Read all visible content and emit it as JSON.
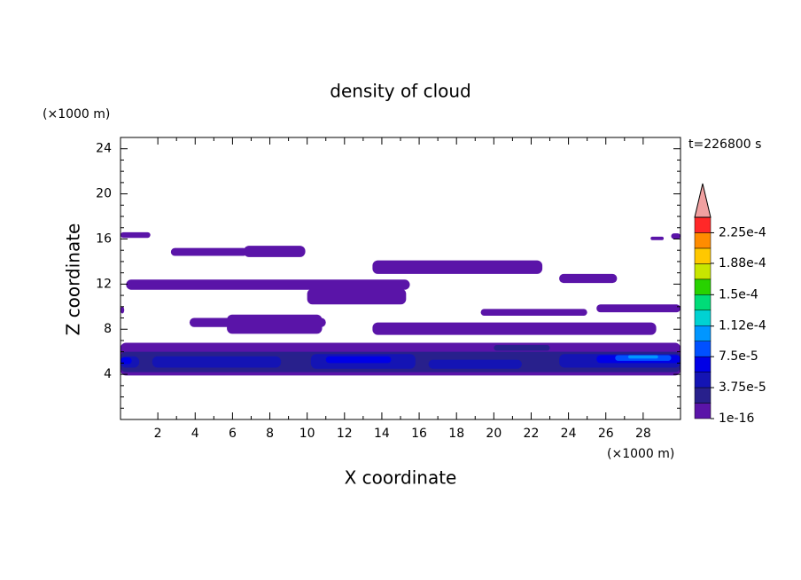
{
  "chart_data": {
    "type": "contour",
    "title": "density of cloud",
    "x_label": "X coordinate",
    "y_label": "Z coordinate",
    "x_unit": "(×1000 m)",
    "y_unit": "(×1000 m)",
    "time_label": "t=226800 s",
    "xlim": [
      0,
      30
    ],
    "xticks": [
      2,
      4,
      6,
      8,
      10,
      12,
      14,
      16,
      18,
      20,
      22,
      24,
      26,
      28
    ],
    "ylim": [
      0,
      25
    ],
    "yticks": [
      4,
      8,
      12,
      16,
      20,
      24
    ],
    "clim": [
      1e-16,
      0.00024375
    ],
    "colors": [
      "#5a14a8",
      "#28208c",
      "#1414b4",
      "#0000e6",
      "#0050ff",
      "#0096ff",
      "#00d2d2",
      "#00dc78",
      "#28d200",
      "#c8e600",
      "#ffc800",
      "#ff8c00",
      "#ff2828"
    ],
    "over_color": "#f0a0a0",
    "cticks": [
      1e-16,
      {
        "value": 3.75e-05,
        "label": "3.75e-5"
      },
      {
        "value": 7.5e-05,
        "label": "7.5e-5"
      },
      {
        "value": 0.000112,
        "label": "1.12e-4"
      },
      {
        "value": 0.00015,
        "label": "1.5e-4"
      },
      {
        "value": 0.000188,
        "label": "1.88e-4"
      },
      {
        "value": 0.000225,
        "label": "2.25e-4"
      }
    ],
    "regions": [
      {
        "x": [
          0,
          1.6
        ],
        "z": [
          16.1,
          16.6
        ],
        "value": 1e-16
      },
      {
        "x": [
          28.4,
          29.1
        ],
        "z": [
          15.9,
          16.2
        ],
        "value": 1e-16
      },
      {
        "x": [
          29.5,
          30
        ],
        "z": [
          16.0,
          16.5
        ],
        "value": 1e-16
      },
      {
        "x": [
          2.7,
          6.8
        ],
        "z": [
          14.5,
          15.2
        ],
        "value": 1e-16
      },
      {
        "x": [
          6.6,
          9.9
        ],
        "z": [
          14.4,
          15.4
        ],
        "value": 1e-16
      },
      {
        "x": [
          0.3,
          15.5
        ],
        "z": [
          11.5,
          12.4
        ],
        "value": 1e-16
      },
      {
        "x": [
          10,
          15.3
        ],
        "z": [
          10.2,
          11.6
        ],
        "value": 1e-16
      },
      {
        "x": [
          13.5,
          22.6
        ],
        "z": [
          12.9,
          14.1
        ],
        "value": 1e-16
      },
      {
        "x": [
          23.5,
          26.6
        ],
        "z": [
          12.1,
          12.9
        ],
        "value": 1e-16
      },
      {
        "x": [
          0,
          0.2
        ],
        "z": [
          9.4,
          10.0
        ],
        "value": 1e-16
      },
      {
        "x": [
          3.7,
          11
        ],
        "z": [
          8.2,
          9.0
        ],
        "value": 1e-16
      },
      {
        "x": [
          5.7,
          10.8
        ],
        "z": [
          7.6,
          9.3
        ],
        "value": 1e-16
      },
      {
        "x": [
          19.3,
          25
        ],
        "z": [
          9.2,
          9.8
        ],
        "value": 1e-16
      },
      {
        "x": [
          25.5,
          30
        ],
        "z": [
          9.5,
          10.2
        ],
        "value": 1e-16
      },
      {
        "x": [
          13.5,
          28.7
        ],
        "z": [
          7.5,
          8.6
        ],
        "value": 1e-16
      },
      {
        "x": [
          0,
          30
        ],
        "z": [
          3.9,
          6.8
        ],
        "value": 1e-16
      },
      {
        "x": [
          0,
          30
        ],
        "z": [
          4.2,
          6.0
        ],
        "value": 2e-05
      },
      {
        "x": [
          20,
          23
        ],
        "z": [
          6.1,
          6.6
        ],
        "value": 2e-05
      },
      {
        "x": [
          0,
          1
        ],
        "z": [
          4.6,
          5.6
        ],
        "value": 4e-05
      },
      {
        "x": [
          1.7,
          8.6
        ],
        "z": [
          4.6,
          5.6
        ],
        "value": 4e-05
      },
      {
        "x": [
          10.2,
          15.8
        ],
        "z": [
          4.5,
          5.8
        ],
        "value": 4e-05
      },
      {
        "x": [
          16.5,
          21.5
        ],
        "z": [
          4.5,
          5.3
        ],
        "value": 4e-05
      },
      {
        "x": [
          23.5,
          30
        ],
        "z": [
          4.6,
          5.8
        ],
        "value": 4e-05
      },
      {
        "x": [
          0,
          0.6
        ],
        "z": [
          4.9,
          5.5
        ],
        "value": 6e-05
      },
      {
        "x": [
          11,
          14.5
        ],
        "z": [
          5.0,
          5.6
        ],
        "value": 6e-05
      },
      {
        "x": [
          25.5,
          30
        ],
        "z": [
          5.0,
          5.7
        ],
        "value": 6e-05
      },
      {
        "x": [
          26.5,
          29.5
        ],
        "z": [
          5.2,
          5.7
        ],
        "value": 8e-05
      },
      {
        "x": [
          27.2,
          28.8
        ],
        "z": [
          5.4,
          5.7
        ],
        "value": 0.0001
      }
    ]
  }
}
